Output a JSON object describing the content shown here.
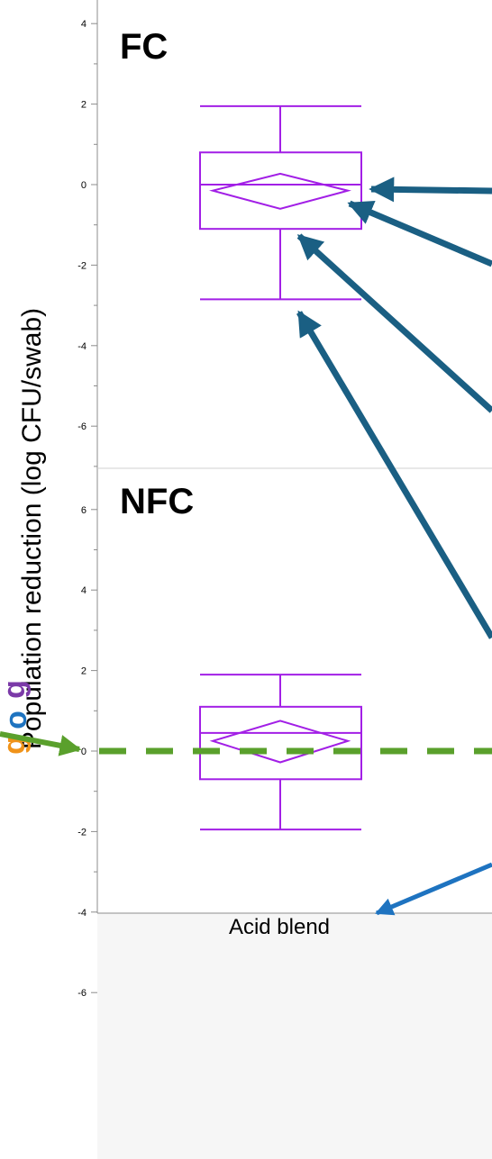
{
  "chart_data": [
    {
      "type": "box",
      "panel": "FC",
      "title": "FC",
      "ylabel": "Population reduction (log CFU/swab)",
      "xlabel": "Acid blend",
      "categories": [
        "Acid blend"
      ],
      "ylim": [
        -7,
        4.5
      ],
      "yticks": [
        4,
        2,
        0,
        -2,
        -4,
        -6
      ],
      "box": {
        "whisker_low": -2.85,
        "q1": -1.1,
        "median": 0.0,
        "q3": 0.8,
        "whisker_high": 1.95,
        "mean": -0.15,
        "ci_low": -0.6,
        "ci_high": 0.27
      }
    },
    {
      "type": "box",
      "panel": "NFC",
      "title": "NFC",
      "categories": [
        "Acid blend"
      ],
      "ylim": [
        -7,
        7
      ],
      "yticks": [
        6,
        4,
        2,
        0,
        -2,
        -4,
        -6
      ],
      "reference_line_y": 0,
      "box": {
        "whisker_low": -1.95,
        "q1": -0.7,
        "median": 0.45,
        "q3": 1.1,
        "whisker_high": 1.9,
        "mean": 0.25,
        "ci_low": -0.28,
        "ci_high": 0.75
      }
    }
  ],
  "colors": {
    "box": "#a21fe6",
    "arrow": "#1a5f83",
    "arrow_bottom": "#1e73c0",
    "reference_line": "#5aa02c",
    "grid": "#d0d0d0"
  },
  "icons": {
    "arrows": "arrow-annotations",
    "cut_text": "clipped-text-fragments"
  },
  "cut_glyphs": [
    {
      "text": "g",
      "color": "#7b3aa8"
    },
    {
      "text": "o",
      "color": "#1e73c0"
    },
    {
      "text": "g",
      "color": "#f0931a"
    }
  ]
}
